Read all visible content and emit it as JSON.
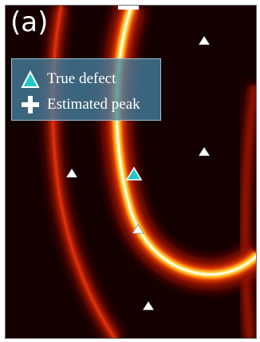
{
  "figure": {
    "panel_label": "(a)"
  },
  "legend": {
    "items": [
      {
        "label": "True defect",
        "marker": "cyan-triangle-icon",
        "color": "#1ec8c8"
      },
      {
        "label": "Estimated peak",
        "marker": "white-cross-icon",
        "color": "#ffffff"
      }
    ]
  },
  "colors": {
    "background": "#140000",
    "ridge_core": "#fffbe0",
    "ridge_hot": "#ffe04a",
    "ridge_mid": "#ff6a00",
    "ridge_outer": "#b01000",
    "secondary_arc": "#c01a00",
    "sensor_marker": "#ffffff",
    "true_defect_marker": "#1ec8c8"
  },
  "chart_data": {
    "type": "heatmap",
    "title": "",
    "xlabel": "",
    "ylabel": "",
    "legend_position": "top-left",
    "description_series": [
      {
        "name": "True defect",
        "count": 1
      },
      {
        "name": "Estimated peak",
        "count": 1
      }
    ]
  }
}
